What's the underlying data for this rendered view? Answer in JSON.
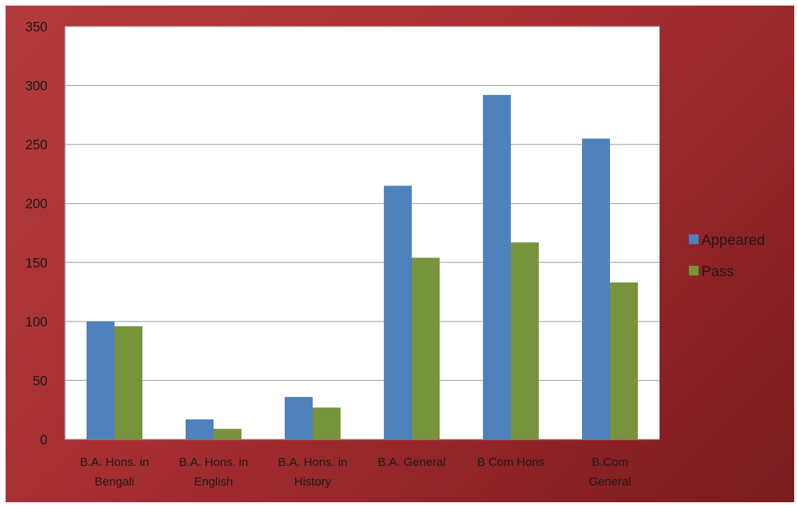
{
  "chart_data": {
    "type": "bar",
    "categories": [
      [
        "B.A. Hons. in",
        "Bengali"
      ],
      [
        "B.A. Hons. in",
        "English"
      ],
      [
        "B.A. Hons. in",
        "History"
      ],
      [
        "B.A. General",
        ""
      ],
      [
        "B Com Hons",
        ""
      ],
      [
        "B.Com",
        "General"
      ]
    ],
    "series": [
      {
        "name": "Appeared",
        "color": "#4f81bd",
        "values": [
          100,
          17,
          36,
          215,
          292,
          255
        ]
      },
      {
        "name": "Pass",
        "color": "#77933c",
        "values": [
          96,
          9,
          27,
          154,
          167,
          133
        ]
      }
    ],
    "ylim": [
      0,
      350
    ],
    "yticks": [
      0,
      50,
      100,
      150,
      200,
      250,
      300,
      350
    ],
    "grid": true,
    "legend_position": "right",
    "plot_background": "#ffffff",
    "frame_background": "#a62e31"
  }
}
